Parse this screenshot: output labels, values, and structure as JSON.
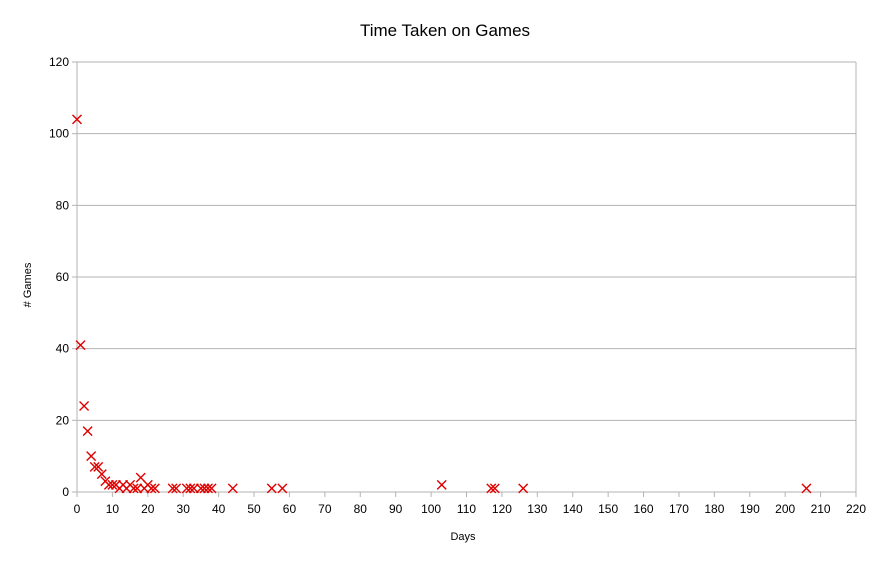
{
  "chart_data": {
    "type": "scatter",
    "title": "Time Taken on Games",
    "xlabel": "Days",
    "ylabel": "# Games",
    "xlim": [
      0,
      220
    ],
    "ylim": [
      0,
      120
    ],
    "xticks": [
      0,
      10,
      20,
      30,
      40,
      50,
      60,
      70,
      80,
      90,
      100,
      110,
      120,
      130,
      140,
      150,
      160,
      170,
      180,
      190,
      200,
      210,
      220
    ],
    "yticks": [
      0,
      20,
      40,
      60,
      80,
      100,
      120
    ],
    "grid": "horizontal",
    "marker": "x",
    "marker_color": "#e00000",
    "series": [
      {
        "points": [
          [
            0,
            104
          ],
          [
            1,
            41
          ],
          [
            2,
            24
          ],
          [
            3,
            17
          ],
          [
            4,
            10
          ],
          [
            5,
            7
          ],
          [
            6,
            7
          ],
          [
            7,
            5
          ],
          [
            8,
            3
          ],
          [
            9,
            2
          ],
          [
            10,
            2
          ],
          [
            11,
            2
          ],
          [
            12,
            1
          ],
          [
            13,
            2
          ],
          [
            14,
            1
          ],
          [
            15,
            2
          ],
          [
            16,
            1
          ],
          [
            17,
            1
          ],
          [
            18,
            4
          ],
          [
            19,
            1
          ],
          [
            20,
            2
          ],
          [
            21,
            1
          ],
          [
            22,
            1
          ],
          [
            27,
            1
          ],
          [
            28,
            1
          ],
          [
            31,
            1
          ],
          [
            32,
            1
          ],
          [
            33,
            1
          ],
          [
            35,
            1
          ],
          [
            36,
            1
          ],
          [
            37,
            1
          ],
          [
            38,
            1
          ],
          [
            44,
            1
          ],
          [
            55,
            1
          ],
          [
            58,
            1
          ],
          [
            103,
            2
          ],
          [
            117,
            1
          ],
          [
            118,
            1
          ],
          [
            126,
            1
          ],
          [
            206,
            1
          ]
        ]
      }
    ]
  }
}
